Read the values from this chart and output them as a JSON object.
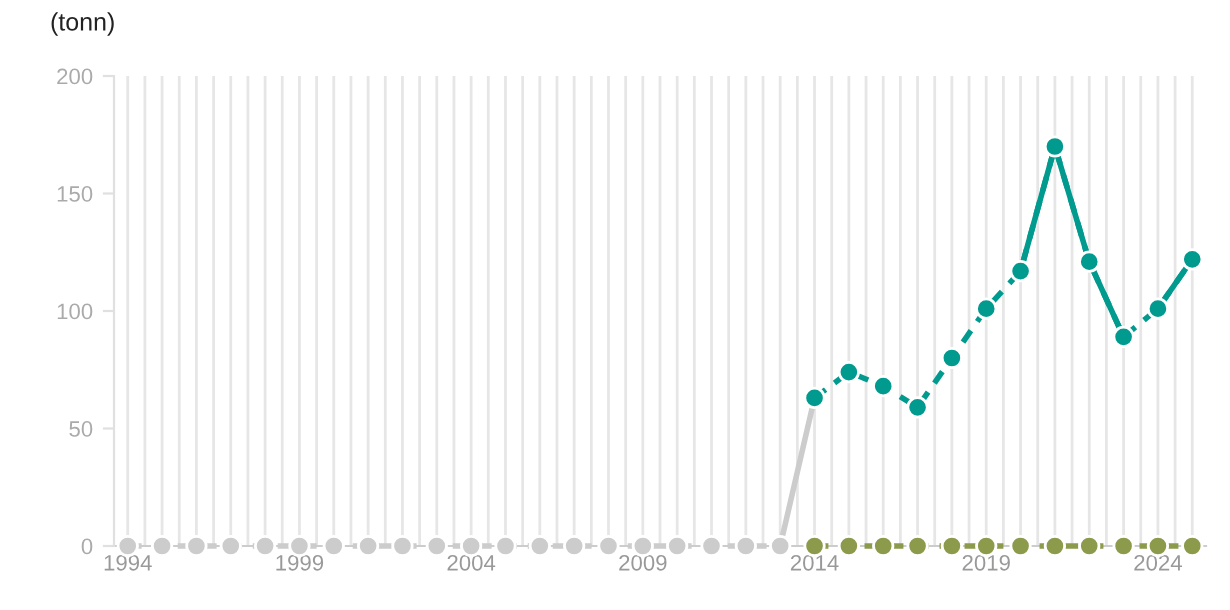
{
  "chart_data": {
    "type": "line",
    "ylabel": "(tonn)",
    "xlim": [
      1993.6,
      2025.4
    ],
    "ylim": [
      0,
      200
    ],
    "yticks": [
      0,
      50,
      100,
      150,
      200
    ],
    "xticks": [
      {
        "value": 1994,
        "label": "1994"
      },
      {
        "value": 1994.5,
        "label": null
      },
      {
        "value": 1995,
        "label": null
      },
      {
        "value": 1995.5,
        "label": null
      },
      {
        "value": 1996,
        "label": null
      },
      {
        "value": 1996.5,
        "label": null
      },
      {
        "value": 1997,
        "label": null
      },
      {
        "value": 1997.5,
        "label": null
      },
      {
        "value": 1998,
        "label": null
      },
      {
        "value": 1998.5,
        "label": null
      },
      {
        "value": 1999,
        "label": "1999"
      },
      {
        "value": 1999.5,
        "label": null
      },
      {
        "value": 2000,
        "label": null
      },
      {
        "value": 2000.5,
        "label": null
      },
      {
        "value": 2001,
        "label": null
      },
      {
        "value": 2001.5,
        "label": null
      },
      {
        "value": 2002,
        "label": null
      },
      {
        "value": 2002.5,
        "label": null
      },
      {
        "value": 2003,
        "label": null
      },
      {
        "value": 2003.5,
        "label": null
      },
      {
        "value": 2004,
        "label": "2004"
      },
      {
        "value": 2004.5,
        "label": null
      },
      {
        "value": 2005,
        "label": null
      },
      {
        "value": 2005.5,
        "label": null
      },
      {
        "value": 2006,
        "label": null
      },
      {
        "value": 2006.5,
        "label": null
      },
      {
        "value": 2007,
        "label": null
      },
      {
        "value": 2007.5,
        "label": null
      },
      {
        "value": 2008,
        "label": null
      },
      {
        "value": 2008.5,
        "label": null
      },
      {
        "value": 2009,
        "label": "2009"
      },
      {
        "value": 2009.5,
        "label": null
      },
      {
        "value": 2010,
        "label": null
      },
      {
        "value": 2010.5,
        "label": null
      },
      {
        "value": 2011,
        "label": null
      },
      {
        "value": 2011.5,
        "label": null
      },
      {
        "value": 2012,
        "label": null
      },
      {
        "value": 2012.5,
        "label": null
      },
      {
        "value": 2013,
        "label": null
      },
      {
        "value": 2013.5,
        "label": null
      },
      {
        "value": 2014,
        "label": "2014"
      },
      {
        "value": 2014.5,
        "label": null
      },
      {
        "value": 2015,
        "label": null
      },
      {
        "value": 2015.5,
        "label": null
      },
      {
        "value": 2016,
        "label": null
      },
      {
        "value": 2016.5,
        "label": null
      },
      {
        "value": 2017,
        "label": null
      },
      {
        "value": 2017.5,
        "label": null
      },
      {
        "value": 2018,
        "label": null
      },
      {
        "value": 2018.5,
        "label": null
      },
      {
        "value": 2019,
        "label": "2019"
      },
      {
        "value": 2019.5,
        "label": null
      },
      {
        "value": 2020,
        "label": null
      },
      {
        "value": 2020.5,
        "label": null
      },
      {
        "value": 2021,
        "label": null
      },
      {
        "value": 2021.5,
        "label": null
      },
      {
        "value": 2022,
        "label": null
      },
      {
        "value": 2022.5,
        "label": null
      },
      {
        "value": 2023,
        "label": null
      },
      {
        "value": 2023.5,
        "label": null
      },
      {
        "value": 2024,
        "label": "2024"
      },
      {
        "value": 2024.5,
        "label": null
      },
      {
        "value": 2025,
        "label": null
      }
    ],
    "grid": "x",
    "legend": false,
    "series": [
      {
        "color": "#cccccc",
        "marker": "circle",
        "line_style": "dashed",
        "x": [
          1994,
          1995,
          1996,
          1997,
          1998,
          1999,
          2000,
          2001,
          2002,
          2003,
          2004,
          2005,
          2006,
          2007,
          2008,
          2009,
          2010,
          2011,
          2012,
          2013
        ],
        "values": [
          0,
          0,
          0,
          0,
          0,
          0,
          0,
          0,
          0,
          0,
          0,
          0,
          0,
          0,
          0,
          0,
          0,
          0,
          0,
          0
        ]
      },
      {
        "color": "#cccccc",
        "marker": "none",
        "line_style": "solid",
        "x": [
          2013,
          2014
        ],
        "values": [
          0,
          63
        ]
      },
      {
        "color": "#8c9a4b",
        "marker": "circle",
        "line_style": "dashed",
        "x": [
          2014,
          2015,
          2016,
          2017,
          2018,
          2019,
          2020,
          2021,
          2022,
          2023,
          2024,
          2025
        ],
        "values": [
          0,
          0,
          0,
          0,
          0,
          0,
          0,
          0,
          0,
          0,
          0,
          0
        ]
      },
      {
        "color": "#009a8e",
        "marker": "circle",
        "line_style": "dashed",
        "x": [
          2014,
          2015,
          2016,
          2017,
          2018,
          2019,
          2020,
          2021,
          2022,
          2023,
          2024,
          2025
        ],
        "values": [
          63,
          74,
          68,
          59,
          80,
          101,
          117,
          170,
          121,
          89,
          101,
          122
        ]
      },
      {
        "color": "#009a8e",
        "marker": "none",
        "line_style": "solid",
        "x": [
          2020,
          2021,
          2022,
          2023
        ],
        "values": [
          117,
          170,
          121,
          89
        ]
      },
      {
        "color": "#009a8e",
        "marker": "none",
        "line_style": "solid",
        "x": [
          2024,
          2025
        ],
        "values": [
          101,
          122
        ]
      }
    ]
  }
}
